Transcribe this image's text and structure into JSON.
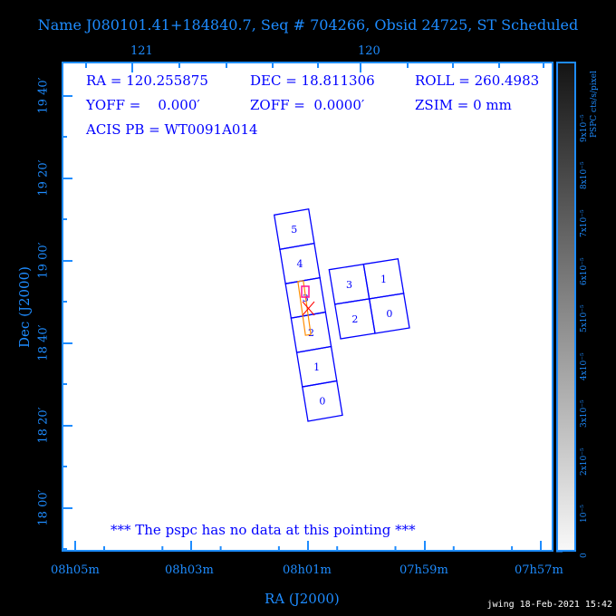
{
  "title": "Name J080101.41+184840.7, Seq # 704266, Obsid 24725, ST Scheduled",
  "info": {
    "ra": "RA = 120.255875",
    "dec": "DEC = 18.811306",
    "roll": "ROLL = 260.4983",
    "yoff": "YOFF =    0.000′",
    "zoff": "ZOFF =  0.0000′",
    "zsim": "ZSIM = 0 mm",
    "acis_pb": "ACIS PB = WT0091A014"
  },
  "message": "*** The pspc has no data at this pointing ***",
  "top_axis_labels": [
    "121",
    "120"
  ],
  "dec_labels": [
    "19 40′",
    "19 20′",
    "19 00′",
    "18 40′",
    "18 20′",
    "18 00′"
  ],
  "ra_labels": [
    "08h05m",
    "08h03m",
    "08h01m",
    "07h59m",
    "07h57m"
  ],
  "xlabel": "RA (J2000)",
  "ylabel": "Dec (J2000)",
  "colorbar": {
    "title": "PSPC cts/s/pixel",
    "labels": [
      "0",
      "10⁻⁵",
      "2x10⁻⁵",
      "3x10⁻⁵",
      "4x10⁻⁵",
      "5x10⁻⁵",
      "6x10⁻⁵",
      "7x10⁻⁵",
      "8x10⁻⁵",
      "9x10⁻⁵"
    ]
  },
  "chips": {
    "strip_labels": [
      "5",
      "4",
      "3",
      "2",
      "1",
      "0"
    ],
    "array_labels": [
      "3",
      "1",
      "2",
      "0"
    ]
  },
  "footer": "jwing 18-Feb-2021 15:42",
  "colors": {
    "axis": "#1e8cff",
    "chips": "#0000ff",
    "marker": "#ff8c00",
    "target": "#ff0000"
  }
}
